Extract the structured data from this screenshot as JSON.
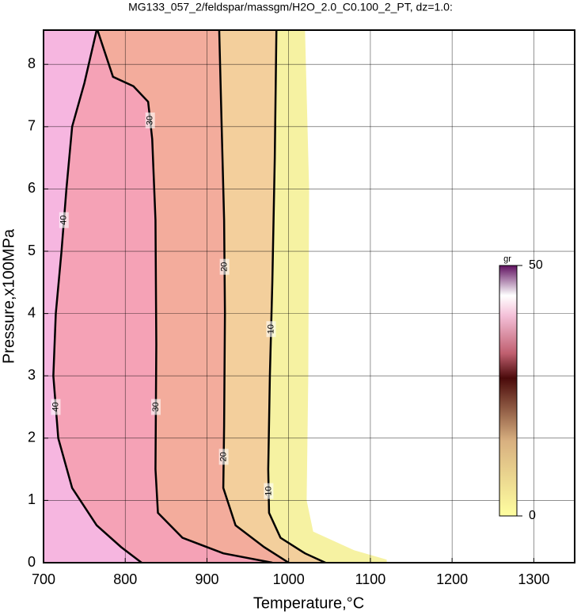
{
  "chart_data": {
    "type": "contour",
    "title": "MG133_057_2/feldspar/massgm/H2O_2.0_C0.100_2_PT, dz=1.0:",
    "x_label": "Temperature,°C",
    "y_label": "Pressure,x100MPa",
    "xlim": [
      700,
      1350
    ],
    "ylim": [
      0,
      8.55
    ],
    "xticks": [
      700,
      800,
      900,
      1000,
      1100,
      1200,
      1300
    ],
    "yticks": [
      0,
      1,
      2,
      3,
      4,
      5,
      6,
      7,
      8
    ],
    "grid": true,
    "fill_edge": {
      "color": "#f6f2a2",
      "x": [
        1020,
        1025,
        1024,
        1022,
        1030,
        1080,
        1120,
        1120
      ],
      "y": [
        8.55,
        6,
        3,
        1,
        0.5,
        0.2,
        0.05,
        0
      ]
    },
    "contours": [
      {
        "level": 10,
        "color": "#f3cf9c",
        "x": [
          985,
          983,
          980,
          977,
          975,
          976,
          990,
          1020,
          1045
        ],
        "y": [
          8.55,
          6.5,
          4.5,
          3,
          1.5,
          0.8,
          0.4,
          0.15,
          0
        ]
      },
      {
        "level": 20,
        "color": "#f3ac9c",
        "x": [
          915,
          918,
          921,
          922,
          921,
          920,
          935,
          970,
          1000
        ],
        "y": [
          8.55,
          7,
          5.5,
          4,
          2.2,
          1.2,
          0.6,
          0.25,
          0
        ]
      },
      {
        "level": 30,
        "color": "#f5a2b6",
        "x": [
          766,
          785,
          810,
          828,
          833,
          837,
          838,
          837,
          840,
          870,
          920,
          980
        ],
        "y": [
          8.55,
          7.8,
          7.65,
          7.4,
          6.8,
          5.5,
          3.5,
          1.5,
          0.8,
          0.4,
          0.15,
          0
        ]
      },
      {
        "level": 40,
        "color": "#f6b6e0",
        "x": [
          765,
          750,
          735,
          728,
          722,
          715,
          712,
          718,
          735,
          765,
          795,
          820
        ],
        "y": [
          8.55,
          7.7,
          7,
          6,
          5,
          4,
          3,
          2,
          1.2,
          0.6,
          0.25,
          0
        ]
      }
    ],
    "colorbar": {
      "label": "gr",
      "lim": [
        0,
        50
      ],
      "ticks": [
        0,
        50
      ]
    }
  }
}
